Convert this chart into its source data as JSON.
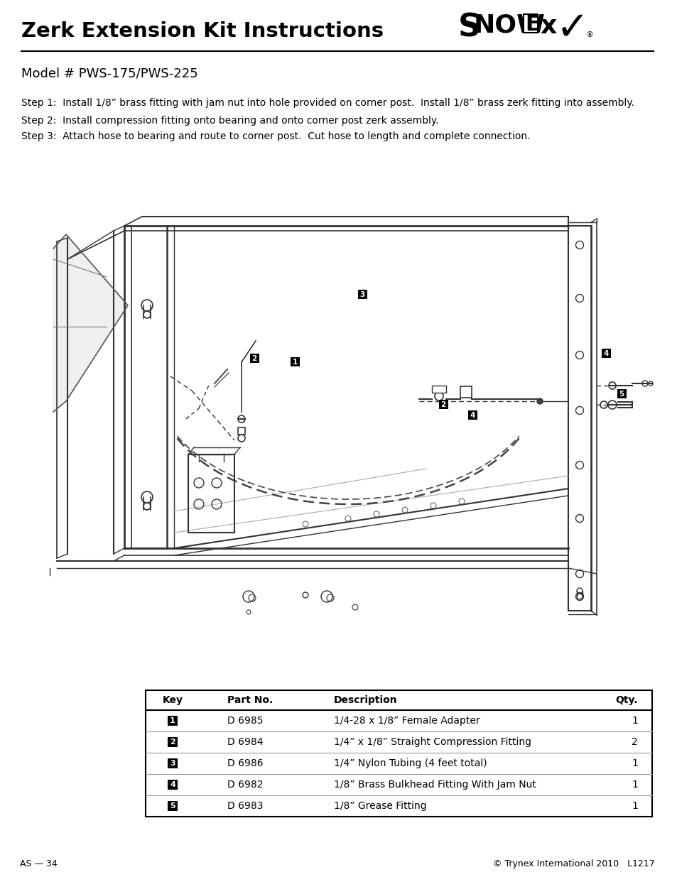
{
  "title": "Zerk Extension Kit Instructions",
  "subtitle": "Model # PWS-175/PWS-225",
  "step1": "Step 1:  Install 1/8” brass fitting with jam nut into hole provided on corner post.  Install 1/8” brass zerk fitting into assembly.",
  "step2": "Step 2:  Install compression fitting onto bearing and onto corner post zerk assembly.",
  "step3": "Step 3:  Attach hose to bearing and route to corner post.  Cut hose to length and complete connection.",
  "footer_left": "AS — 34",
  "footer_right": "© Trynex International 2010   L1217",
  "table_headers": [
    "Key",
    "Part No.",
    "Description",
    "Qty."
  ],
  "table_rows": [
    [
      "1",
      "D 6985",
      "1/4-28 x 1/8” Female Adapter",
      "1"
    ],
    [
      "2",
      "D 6984",
      "1/4” x 1/8” Straight Compression Fitting",
      "2"
    ],
    [
      "3",
      "D 6986",
      "1/4” Nylon Tubing (4 feet total)",
      "1"
    ],
    [
      "4",
      "D 6982",
      "1/8” Brass Bulkhead Fitting With Jam Nut",
      "1"
    ],
    [
      "5",
      "D 6983",
      "1/8” Grease Fitting",
      "1"
    ]
  ],
  "bg_color": "#ffffff",
  "text_color": "#000000",
  "lc": "#333333",
  "lc2": "#555555",
  "lc3": "#888888"
}
